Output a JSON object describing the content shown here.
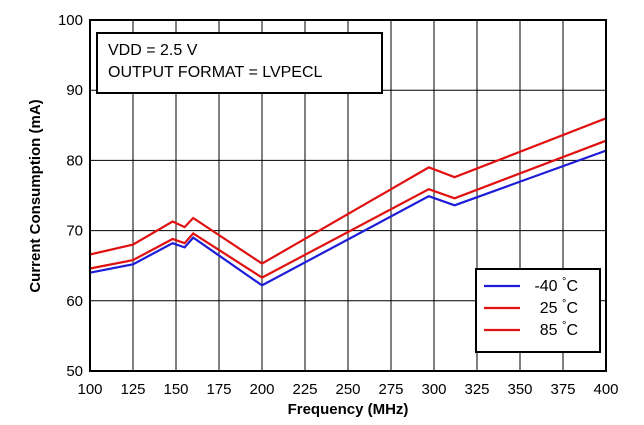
{
  "chart_data": {
    "type": "line",
    "xlabel": "Frequency (MHz)",
    "ylabel": "Current Consumption (mA)",
    "xlim": [
      100,
      400
    ],
    "ylim": [
      50,
      100
    ],
    "xticks": [
      100,
      125,
      150,
      175,
      200,
      225,
      250,
      275,
      300,
      325,
      350,
      375,
      400
    ],
    "yticks": [
      50,
      60,
      70,
      80,
      90,
      100
    ],
    "grid": true,
    "annotation": [
      "VDD = 2.5 V",
      "OUTPUT FORMAT = LVPECL"
    ],
    "legend_placement": "bottom-right",
    "legend_unit": "°C",
    "series": [
      {
        "name": "-40",
        "color": "#1c1cd9",
        "x": [
          100,
          125,
          148,
          155,
          160,
          200,
          297,
          312,
          400
        ],
        "y": [
          64.0,
          65.2,
          68.2,
          67.6,
          69.0,
          62.2,
          74.9,
          73.6,
          81.4
        ]
      },
      {
        "name": "25",
        "color": "#e01010",
        "x": [
          100,
          125,
          148,
          155,
          160,
          200,
          297,
          312,
          400
        ],
        "y": [
          64.6,
          65.8,
          68.8,
          68.2,
          69.6,
          63.3,
          75.9,
          74.6,
          82.8
        ]
      },
      {
        "name": "85",
        "color": "#e01010",
        "x": [
          100,
          125,
          148,
          155,
          160,
          200,
          297,
          312,
          400
        ],
        "y": [
          66.6,
          68.0,
          71.3,
          70.5,
          71.8,
          65.3,
          79.0,
          77.6,
          86.0
        ]
      }
    ]
  }
}
